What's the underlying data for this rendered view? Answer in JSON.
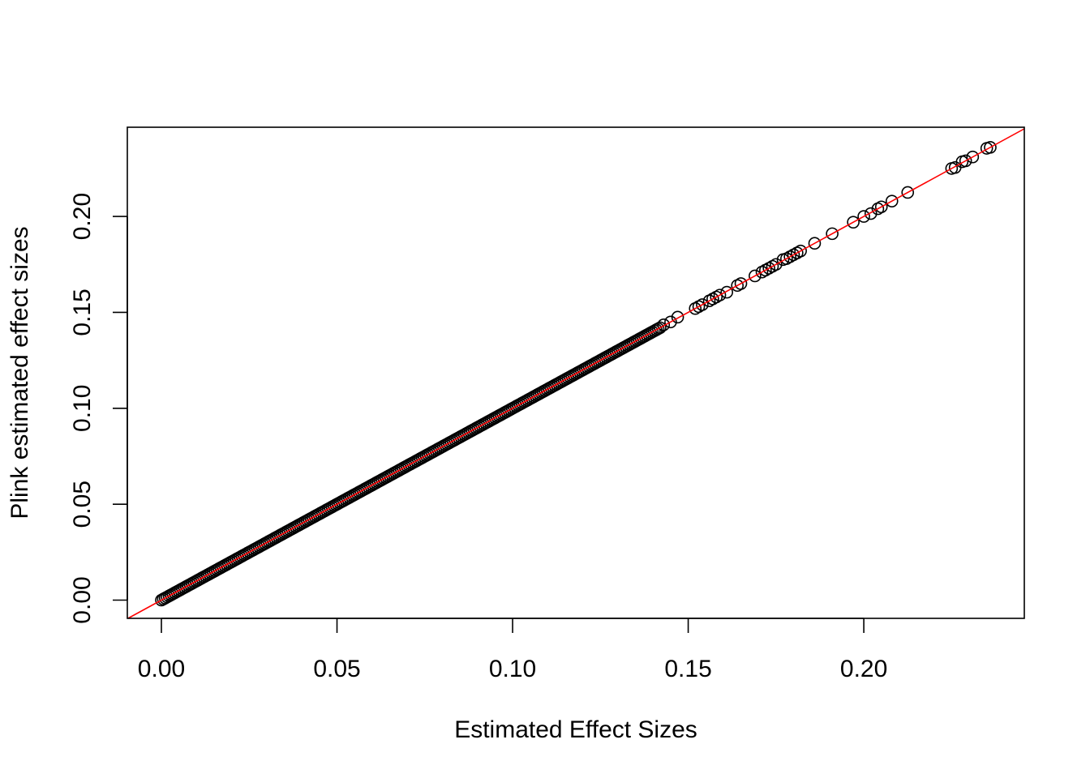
{
  "chart_data": {
    "type": "scatter",
    "title": "",
    "xlabel": "Estimated Effect Sizes",
    "ylabel": "Plink estimated effect sizes",
    "xlim": [
      -0.0097,
      0.2457
    ],
    "ylim": [
      -0.0095,
      0.2465
    ],
    "x_ticks": [
      "0.00",
      "0.05",
      "0.10",
      "0.15",
      "0.20"
    ],
    "y_ticks": [
      "0.00",
      "0.05",
      "0.10",
      "0.15",
      "0.20"
    ],
    "grid": false,
    "legend": "none",
    "marker": "open-circle",
    "marker_color": "#000000",
    "reference_line": {
      "intercept": 0,
      "slope": 1,
      "color": "#ff0000"
    },
    "dense_band": {
      "x_start": 0.0,
      "x_end": 0.142,
      "description": "points lie densely along y = x"
    },
    "points": [
      {
        "x": 0.143,
        "y": 0.1435
      },
      {
        "x": 0.145,
        "y": 0.145
      },
      {
        "x": 0.147,
        "y": 0.1475
      },
      {
        "x": 0.152,
        "y": 0.152
      },
      {
        "x": 0.153,
        "y": 0.153
      },
      {
        "x": 0.154,
        "y": 0.154
      },
      {
        "x": 0.156,
        "y": 0.156
      },
      {
        "x": 0.157,
        "y": 0.157
      },
      {
        "x": 0.158,
        "y": 0.158
      },
      {
        "x": 0.159,
        "y": 0.159
      },
      {
        "x": 0.161,
        "y": 0.1605
      },
      {
        "x": 0.164,
        "y": 0.164
      },
      {
        "x": 0.165,
        "y": 0.165
      },
      {
        "x": 0.169,
        "y": 0.169
      },
      {
        "x": 0.171,
        "y": 0.171
      },
      {
        "x": 0.172,
        "y": 0.172
      },
      {
        "x": 0.173,
        "y": 0.173
      },
      {
        "x": 0.174,
        "y": 0.174
      },
      {
        "x": 0.175,
        "y": 0.175
      },
      {
        "x": 0.177,
        "y": 0.1775
      },
      {
        "x": 0.178,
        "y": 0.178
      },
      {
        "x": 0.179,
        "y": 0.179
      },
      {
        "x": 0.18,
        "y": 0.18
      },
      {
        "x": 0.181,
        "y": 0.181
      },
      {
        "x": 0.182,
        "y": 0.182
      },
      {
        "x": 0.186,
        "y": 0.186
      },
      {
        "x": 0.191,
        "y": 0.191
      },
      {
        "x": 0.197,
        "y": 0.197
      },
      {
        "x": 0.2,
        "y": 0.2
      },
      {
        "x": 0.202,
        "y": 0.2015
      },
      {
        "x": 0.204,
        "y": 0.204
      },
      {
        "x": 0.205,
        "y": 0.205
      },
      {
        "x": 0.208,
        "y": 0.208
      },
      {
        "x": 0.2125,
        "y": 0.2125
      },
      {
        "x": 0.225,
        "y": 0.225
      },
      {
        "x": 0.226,
        "y": 0.2255
      },
      {
        "x": 0.228,
        "y": 0.2285
      },
      {
        "x": 0.229,
        "y": 0.229
      },
      {
        "x": 0.231,
        "y": 0.231
      },
      {
        "x": 0.235,
        "y": 0.2355
      },
      {
        "x": 0.236,
        "y": 0.236
      }
    ]
  }
}
